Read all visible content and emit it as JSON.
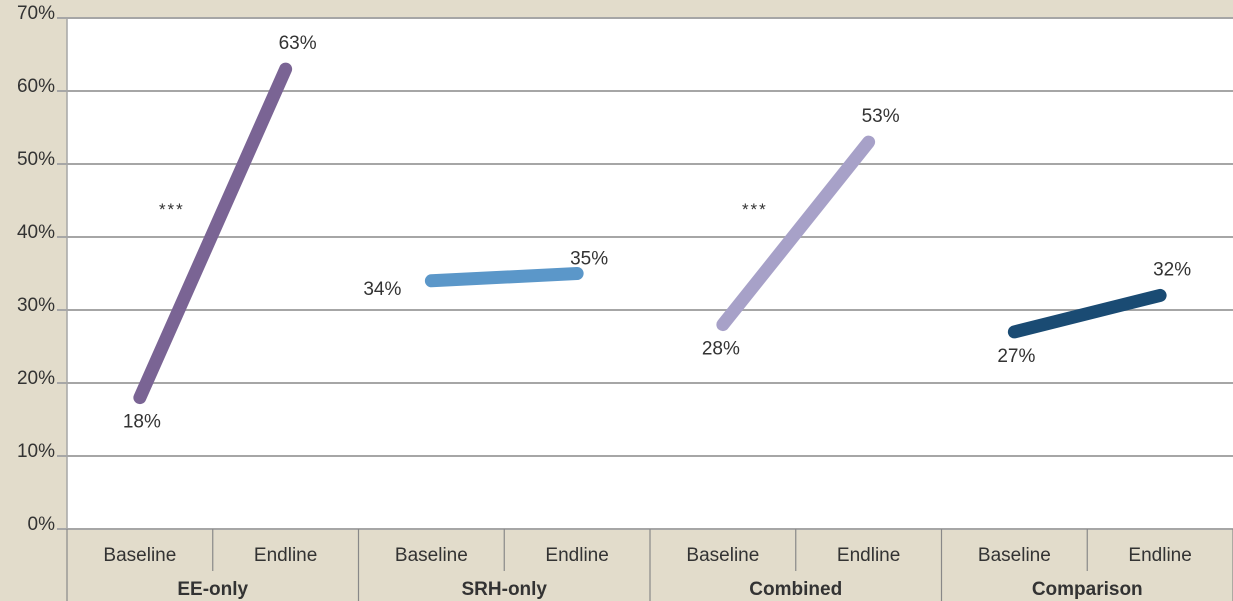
{
  "chart_data": {
    "type": "line",
    "title": "",
    "xlabel": "",
    "ylabel": "",
    "ylim": [
      0,
      70
    ],
    "yticks": [
      "0%",
      "10%",
      "20%",
      "30%",
      "40%",
      "50%",
      "60%",
      "70%"
    ],
    "grid": true,
    "legend": "none",
    "groups": [
      {
        "name": "EE-only",
        "categories": [
          "Baseline",
          "Endline"
        ],
        "values": [
          18,
          63
        ],
        "labels": [
          "18%",
          "63%"
        ],
        "significance": "***",
        "color": "#7a6494"
      },
      {
        "name": "SRH-only",
        "categories": [
          "Baseline",
          "Endline"
        ],
        "values": [
          34,
          35
        ],
        "labels": [
          "34%",
          "35%"
        ],
        "significance": "",
        "color": "#5b97c9"
      },
      {
        "name": "Combined",
        "categories": [
          "Baseline",
          "Endline"
        ],
        "values": [
          28,
          53
        ],
        "labels": [
          "28%",
          "53%"
        ],
        "significance": "***",
        "color": "#a7a1c8"
      },
      {
        "name": "Comparison",
        "categories": [
          "Baseline",
          "Endline"
        ],
        "values": [
          27,
          32
        ],
        "labels": [
          "27%",
          "32%"
        ],
        "significance": "",
        "color": "#1a4b73"
      }
    ]
  }
}
